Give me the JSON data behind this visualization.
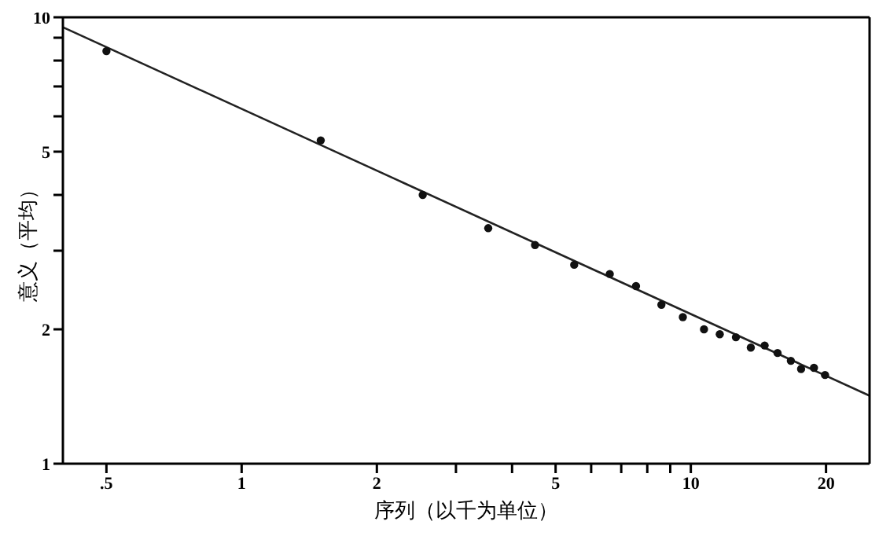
{
  "chart_data": {
    "type": "scatter",
    "xlabel": "序列（以千为单位）",
    "ylabel": "意义（平均）",
    "log": "xy",
    "xlim": [
      0.4,
      25
    ],
    "ylim": [
      1,
      10
    ],
    "xticks": [
      {
        "value": 0.5,
        "label": ".5"
      },
      1,
      2,
      {
        "value": 3,
        "label": null
      },
      {
        "value": 4,
        "label": null
      },
      5,
      {
        "value": 6,
        "label": null
      },
      {
        "value": 7,
        "label": null
      },
      {
        "value": 8,
        "label": null
      },
      {
        "value": 9,
        "label": null
      },
      10,
      20
    ],
    "yticks": [
      1,
      2,
      {
        "value": 3,
        "label": null
      },
      {
        "value": 4,
        "label": null
      },
      5,
      {
        "value": 6,
        "label": null
      },
      {
        "value": 7,
        "label": null
      },
      {
        "value": 8,
        "label": null
      },
      {
        "value": 9,
        "label": null
      },
      10
    ],
    "marker": "circle",
    "series": [
      {
        "color": "#111111",
        "x": [
          0.5,
          1.5,
          2.53,
          3.54,
          4.5,
          5.5,
          6.6,
          7.55,
          8.6,
          9.6,
          10.7,
          11.6,
          12.6,
          13.6,
          14.6,
          15.6,
          16.7,
          17.6,
          18.8,
          19.9
        ],
        "values": [
          8.4,
          5.3,
          4.0,
          3.37,
          3.09,
          2.79,
          2.66,
          2.5,
          2.27,
          2.13,
          2.0,
          1.95,
          1.92,
          1.82,
          1.84,
          1.77,
          1.7,
          1.63,
          1.64,
          1.58
        ]
      },
      {
        "type": "line",
        "color": "#222222",
        "marker": "none",
        "line_style": "solid",
        "x": [
          0.4,
          25
        ],
        "values": [
          9.5,
          1.42
        ]
      }
    ]
  }
}
